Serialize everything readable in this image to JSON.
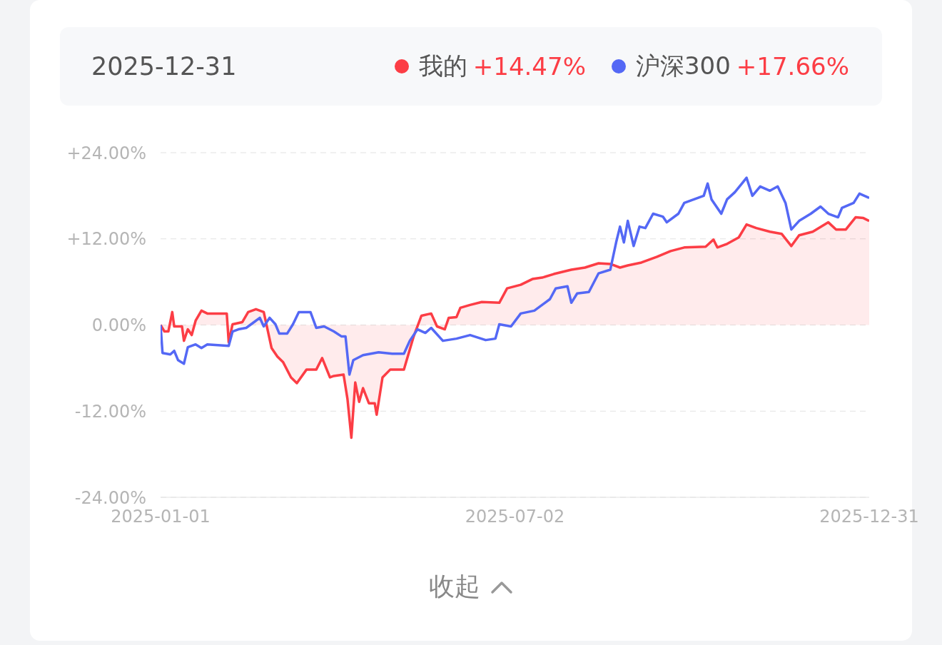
{
  "chart_data": {
    "type": "line",
    "title": "2025-12-31",
    "xlim": [
      "2025-01-01",
      "2025-12-31"
    ],
    "xticks": [
      "2025-01-01",
      "2025-07-02",
      "2025-12-31"
    ],
    "ylim": [
      -24,
      24
    ],
    "yticks": [
      {
        "value": -24,
        "label": "-24.00%"
      },
      {
        "value": -12,
        "label": "-12.00%"
      },
      {
        "value": 0,
        "label": "0.00%"
      },
      {
        "value": 12,
        "label": "+12.00%"
      },
      {
        "value": 24,
        "label": "+24.00%"
      }
    ],
    "grid": "y",
    "legend": "top",
    "marker": "none",
    "line_style": "solid",
    "annotations": [
      "+14.47%",
      "+17.66%",
      "收起"
    ],
    "series": [
      {
        "name": "我的",
        "type": "area",
        "color": "#fc3d45",
        "x": [
          "2025-01-01",
          "2025-01-03",
          "2025-01-05",
          "2025-01-07",
          "2025-01-08",
          "2025-01-12",
          "2025-01-13",
          "2025-01-15",
          "2025-01-17",
          "2025-01-19",
          "2025-01-22",
          "2025-01-25",
          "2025-02-04",
          "2025-02-05",
          "2025-02-07",
          "2025-02-12",
          "2025-02-15",
          "2025-02-19",
          "2025-02-23",
          "2025-02-27",
          "2025-03-02",
          "2025-03-05",
          "2025-03-09",
          "2025-03-12",
          "2025-03-17",
          "2025-03-22",
          "2025-03-25",
          "2025-03-29",
          "2025-03-31",
          "2025-04-05",
          "2025-04-07",
          "2025-04-09",
          "2025-04-11",
          "2025-04-13",
          "2025-04-15",
          "2025-04-18",
          "2025-04-21",
          "2025-04-22",
          "2025-04-25",
          "2025-04-29",
          "2025-05-06",
          "2025-05-11",
          "2025-05-15",
          "2025-05-20",
          "2025-05-23",
          "2025-05-27",
          "2025-05-29",
          "2025-06-02",
          "2025-06-04",
          "2025-06-09",
          "2025-06-15",
          "2025-06-24",
          "2025-06-28",
          "2025-07-05",
          "2025-07-11",
          "2025-07-16",
          "2025-07-22",
          "2025-07-31",
          "2025-08-07",
          "2025-08-14",
          "2025-08-20",
          "2025-08-25",
          "2025-08-29",
          "2025-09-05",
          "2025-09-13",
          "2025-09-20",
          "2025-09-27",
          "2025-10-08",
          "2025-10-12",
          "2025-10-14",
          "2025-10-19",
          "2025-10-25",
          "2025-10-29",
          "2025-11-03",
          "2025-11-10",
          "2025-11-16",
          "2025-11-21",
          "2025-11-25",
          "2025-12-02",
          "2025-12-10",
          "2025-12-14",
          "2025-12-19",
          "2025-12-24",
          "2025-12-28",
          "2025-12-31"
        ],
        "values": [
          0,
          -0.9,
          -0.9,
          1.8,
          -0.2,
          -0.2,
          -2.2,
          -0.6,
          -1.4,
          0.6,
          2.0,
          1.6,
          1.6,
          -2.4,
          0.1,
          0.4,
          1.8,
          2.2,
          1.8,
          -3.2,
          -4.4,
          -5.2,
          -7.3,
          -8.1,
          -6.2,
          -6.2,
          -4.6,
          -7.3,
          -7.1,
          -6.9,
          -10.3,
          -15.7,
          -8.0,
          -10.7,
          -8.8,
          -10.9,
          -10.9,
          -12.5,
          -7.3,
          -6.2,
          -6.2,
          -1.6,
          1.3,
          1.6,
          -0.2,
          -0.6,
          1.0,
          1.1,
          2.4,
          2.8,
          3.2,
          3.1,
          5.1,
          5.6,
          6.4,
          6.6,
          7.1,
          7.7,
          8.0,
          8.6,
          8.5,
          8.0,
          8.3,
          8.7,
          9.5,
          10.3,
          10.8,
          10.9,
          11.9,
          10.8,
          11.3,
          12.2,
          14.0,
          13.5,
          13.0,
          12.7,
          11.0,
          12.5,
          13.0,
          14.3,
          13.3,
          13.3,
          15.0,
          14.9,
          14.5
        ]
      },
      {
        "name": "沪深300",
        "type": "line",
        "color": "#5468f5",
        "x": [
          "2025-01-01",
          "2025-01-02",
          "2025-01-06",
          "2025-01-08",
          "2025-01-10",
          "2025-01-13",
          "2025-01-15",
          "2025-01-19",
          "2025-01-22",
          "2025-01-25",
          "2025-02-05",
          "2025-02-07",
          "2025-02-10",
          "2025-02-14",
          "2025-02-18",
          "2025-02-21",
          "2025-02-23",
          "2025-02-26",
          "2025-03-01",
          "2025-03-03",
          "2025-03-07",
          "2025-03-10",
          "2025-03-13",
          "2025-03-19",
          "2025-03-22",
          "2025-03-26",
          "2025-03-31",
          "2025-04-04",
          "2025-04-06",
          "2025-04-08",
          "2025-04-10",
          "2025-04-15",
          "2025-04-23",
          "2025-04-30",
          "2025-05-06",
          "2025-05-09",
          "2025-05-13",
          "2025-05-17",
          "2025-05-20",
          "2025-05-26",
          "2025-06-02",
          "2025-06-09",
          "2025-06-17",
          "2025-06-22",
          "2025-06-24",
          "2025-06-30",
          "2025-07-05",
          "2025-07-12",
          "2025-07-20",
          "2025-07-23",
          "2025-07-29",
          "2025-07-31",
          "2025-08-03",
          "2025-08-09",
          "2025-08-14",
          "2025-08-20",
          "2025-08-23",
          "2025-08-25",
          "2025-08-27",
          "2025-08-29",
          "2025-09-01",
          "2025-09-04",
          "2025-09-07",
          "2025-09-11",
          "2025-09-16",
          "2025-09-18",
          "2025-09-24",
          "2025-09-27",
          "2025-10-07",
          "2025-10-09",
          "2025-10-11",
          "2025-10-16",
          "2025-10-19",
          "2025-10-23",
          "2025-10-29",
          "2025-11-01",
          "2025-11-05",
          "2025-11-10",
          "2025-11-14",
          "2025-11-18",
          "2025-11-21",
          "2025-11-25",
          "2025-12-01",
          "2025-12-06",
          "2025-12-10",
          "2025-12-15",
          "2025-12-17",
          "2025-12-23",
          "2025-12-26",
          "2025-12-31"
        ],
        "values": [
          0,
          -3.9,
          -4.1,
          -3.6,
          -4.9,
          -5.4,
          -3.1,
          -2.7,
          -3.2,
          -2.7,
          -2.9,
          -0.9,
          -0.6,
          -0.4,
          0.4,
          1.0,
          -0.2,
          1.0,
          0.1,
          -1.2,
          -1.2,
          0.1,
          1.8,
          1.8,
          -0.4,
          -0.2,
          -0.9,
          -1.6,
          -1.6,
          -6.9,
          -4.9,
          -4.2,
          -3.8,
          -4.0,
          -4.0,
          -2.2,
          -0.6,
          -1.1,
          -0.4,
          -2.2,
          -1.9,
          -1.4,
          -2.1,
          -1.9,
          0.1,
          -0.2,
          1.6,
          2.0,
          3.6,
          5.1,
          5.4,
          3.1,
          4.4,
          4.6,
          7.2,
          7.7,
          11.5,
          13.7,
          11.5,
          14.5,
          11.0,
          13.7,
          13.5,
          15.5,
          15.1,
          14.3,
          15.5,
          17.0,
          18.0,
          19.7,
          17.5,
          15.5,
          17.5,
          18.5,
          20.5,
          18.0,
          19.3,
          18.7,
          19.3,
          17.0,
          13.3,
          14.5,
          15.5,
          16.5,
          15.5,
          15.0,
          16.3,
          17.0,
          18.3,
          17.7
        ]
      }
    ]
  }
}
